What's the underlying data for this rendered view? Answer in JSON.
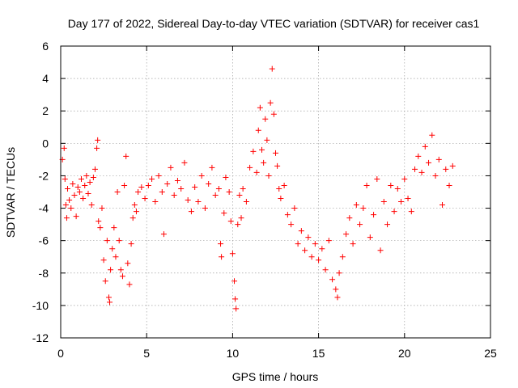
{
  "chart_data": {
    "type": "scatter",
    "title": "Day 177 of 2022, Sidereal Day-to-day VTEC variation (SDTVAR) for receiver cas1",
    "xlabel": "GPS time / hours",
    "ylabel": "SDTVAR / TECUs",
    "xlim": [
      0,
      25
    ],
    "ylim": [
      -12,
      6
    ],
    "xticks": [
      "0",
      "5",
      "10",
      "15",
      "20",
      "25"
    ],
    "yticks": [
      "-12",
      "-10",
      "-8",
      "-6",
      "-4",
      "-2",
      "0",
      "2",
      "4",
      "6"
    ],
    "grid": true,
    "marker": "plus",
    "color": "#ff0000",
    "series": [
      {
        "name": "SDTVAR",
        "points": [
          [
            0.1,
            -1.0
          ],
          [
            0.2,
            -0.3
          ],
          [
            0.25,
            -2.2
          ],
          [
            0.3,
            -3.8
          ],
          [
            0.35,
            -4.6
          ],
          [
            0.4,
            -2.8
          ],
          [
            0.5,
            -3.5
          ],
          [
            0.6,
            -4.0
          ],
          [
            0.7,
            -2.5
          ],
          [
            0.8,
            -3.2
          ],
          [
            0.9,
            -4.5
          ],
          [
            1.0,
            -2.7
          ],
          [
            1.1,
            -3.0
          ],
          [
            1.2,
            -2.2
          ],
          [
            1.3,
            -3.4
          ],
          [
            1.4,
            -2.6
          ],
          [
            1.5,
            -2.0
          ],
          [
            1.6,
            -3.1
          ],
          [
            1.7,
            -2.4
          ],
          [
            1.8,
            -3.8
          ],
          [
            1.9,
            -2.1
          ],
          [
            2.0,
            -1.6
          ],
          [
            2.1,
            -0.3
          ],
          [
            2.15,
            0.2
          ],
          [
            2.2,
            -4.8
          ],
          [
            2.3,
            -5.2
          ],
          [
            2.4,
            -4.0
          ],
          [
            2.5,
            -7.2
          ],
          [
            2.6,
            -8.5
          ],
          [
            2.7,
            -6.0
          ],
          [
            2.8,
            -9.5
          ],
          [
            2.85,
            -9.8
          ],
          [
            2.9,
            -7.8
          ],
          [
            3.0,
            -6.5
          ],
          [
            3.1,
            -5.2
          ],
          [
            3.2,
            -7.0
          ],
          [
            3.3,
            -3.0
          ],
          [
            3.4,
            -6.0
          ],
          [
            3.5,
            -7.8
          ],
          [
            3.6,
            -8.2
          ],
          [
            3.7,
            -2.6
          ],
          [
            3.8,
            -0.8
          ],
          [
            3.9,
            -7.4
          ],
          [
            4.0,
            -8.7
          ],
          [
            4.1,
            -6.2
          ],
          [
            4.2,
            -4.6
          ],
          [
            4.3,
            -3.8
          ],
          [
            4.4,
            -4.2
          ],
          [
            4.5,
            -3.0
          ],
          [
            4.7,
            -2.7
          ],
          [
            4.9,
            -3.4
          ],
          [
            5.1,
            -2.6
          ],
          [
            5.3,
            -2.2
          ],
          [
            5.5,
            -3.6
          ],
          [
            5.7,
            -2.0
          ],
          [
            5.9,
            -3.0
          ],
          [
            6.0,
            -5.6
          ],
          [
            6.2,
            -2.5
          ],
          [
            6.4,
            -1.5
          ],
          [
            6.6,
            -3.2
          ],
          [
            6.8,
            -2.3
          ],
          [
            7.0,
            -2.8
          ],
          [
            7.2,
            -1.2
          ],
          [
            7.4,
            -3.5
          ],
          [
            7.6,
            -4.2
          ],
          [
            7.8,
            -2.7
          ],
          [
            8.0,
            -3.6
          ],
          [
            8.2,
            -2.0
          ],
          [
            8.4,
            -4.0
          ],
          [
            8.6,
            -2.5
          ],
          [
            8.8,
            -1.5
          ],
          [
            9.0,
            -3.2
          ],
          [
            9.2,
            -2.8
          ],
          [
            9.3,
            -6.2
          ],
          [
            9.35,
            -7.0
          ],
          [
            9.5,
            -4.3
          ],
          [
            9.6,
            -2.1
          ],
          [
            9.8,
            -3.0
          ],
          [
            9.9,
            -4.8
          ],
          [
            10.0,
            -6.8
          ],
          [
            10.1,
            -8.5
          ],
          [
            10.15,
            -9.6
          ],
          [
            10.2,
            -10.2
          ],
          [
            10.3,
            -5.0
          ],
          [
            10.4,
            -3.2
          ],
          [
            10.5,
            -4.6
          ],
          [
            10.6,
            -2.8
          ],
          [
            10.8,
            -3.6
          ],
          [
            11.0,
            -1.5
          ],
          [
            11.2,
            -0.5
          ],
          [
            11.4,
            -1.8
          ],
          [
            11.5,
            0.8
          ],
          [
            11.6,
            2.2
          ],
          [
            11.7,
            -0.4
          ],
          [
            11.8,
            -1.2
          ],
          [
            11.9,
            1.5
          ],
          [
            12.0,
            0.2
          ],
          [
            12.1,
            -2.0
          ],
          [
            12.2,
            2.5
          ],
          [
            12.3,
            4.6
          ],
          [
            12.4,
            1.8
          ],
          [
            12.5,
            -0.6
          ],
          [
            12.6,
            -1.4
          ],
          [
            12.7,
            -2.8
          ],
          [
            12.8,
            -3.4
          ],
          [
            13.0,
            -2.6
          ],
          [
            13.2,
            -4.4
          ],
          [
            13.4,
            -5.0
          ],
          [
            13.6,
            -4.0
          ],
          [
            13.8,
            -6.2
          ],
          [
            14.0,
            -5.4
          ],
          [
            14.2,
            -6.6
          ],
          [
            14.4,
            -5.8
          ],
          [
            14.6,
            -7.0
          ],
          [
            14.8,
            -6.2
          ],
          [
            15.0,
            -7.2
          ],
          [
            15.2,
            -6.5
          ],
          [
            15.4,
            -7.8
          ],
          [
            15.6,
            -6.0
          ],
          [
            15.8,
            -8.4
          ],
          [
            16.0,
            -9.0
          ],
          [
            16.1,
            -9.5
          ],
          [
            16.2,
            -8.0
          ],
          [
            16.4,
            -7.0
          ],
          [
            16.6,
            -5.6
          ],
          [
            16.8,
            -4.6
          ],
          [
            17.0,
            -6.2
          ],
          [
            17.2,
            -3.8
          ],
          [
            17.4,
            -5.0
          ],
          [
            17.6,
            -4.0
          ],
          [
            17.8,
            -2.6
          ],
          [
            18.0,
            -5.8
          ],
          [
            18.2,
            -4.4
          ],
          [
            18.4,
            -2.2
          ],
          [
            18.6,
            -6.6
          ],
          [
            18.8,
            -3.6
          ],
          [
            19.0,
            -5.0
          ],
          [
            19.2,
            -2.6
          ],
          [
            19.4,
            -4.2
          ],
          [
            19.6,
            -2.8
          ],
          [
            19.8,
            -3.6
          ],
          [
            20.0,
            -2.2
          ],
          [
            20.2,
            -3.4
          ],
          [
            20.4,
            -4.2
          ],
          [
            20.6,
            -1.6
          ],
          [
            20.8,
            -0.8
          ],
          [
            21.0,
            -1.8
          ],
          [
            21.2,
            -0.2
          ],
          [
            21.4,
            -1.2
          ],
          [
            21.6,
            0.5
          ],
          [
            21.8,
            -2.0
          ],
          [
            22.0,
            -1.0
          ],
          [
            22.2,
            -3.8
          ],
          [
            22.4,
            -1.6
          ],
          [
            22.6,
            -2.6
          ],
          [
            22.8,
            -1.4
          ]
        ]
      }
    ]
  }
}
